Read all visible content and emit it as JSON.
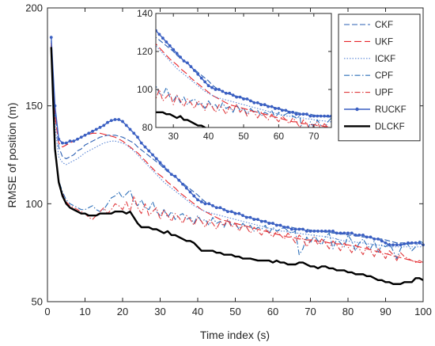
{
  "chart_data": {
    "type": "line",
    "title": "",
    "xlabel": "Time index (s)",
    "ylabel": "RMSE of position (m)",
    "xlim": [
      0,
      100
    ],
    "ylim": [
      50,
      200
    ],
    "xticks": [
      0,
      10,
      20,
      30,
      40,
      50,
      60,
      70,
      80,
      90,
      100
    ],
    "yticks": [
      50,
      100,
      150,
      200
    ],
    "grid": false,
    "legend_position": "top-right",
    "x": [
      1,
      2,
      3,
      4,
      5,
      6,
      7,
      8,
      9,
      10,
      11,
      12,
      13,
      14,
      15,
      16,
      17,
      18,
      19,
      20,
      21,
      22,
      23,
      24,
      25,
      26,
      27,
      28,
      29,
      30,
      31,
      32,
      33,
      34,
      35,
      36,
      37,
      38,
      39,
      40,
      41,
      42,
      43,
      44,
      45,
      46,
      47,
      48,
      49,
      50,
      51,
      52,
      53,
      54,
      55,
      56,
      57,
      58,
      59,
      60,
      61,
      62,
      63,
      64,
      65,
      66,
      67,
      68,
      69,
      70,
      71,
      72,
      73,
      74,
      75,
      76,
      77,
      78,
      79,
      80,
      81,
      82,
      83,
      84,
      85,
      86,
      87,
      88,
      89,
      90,
      91,
      92,
      93,
      94,
      95,
      96,
      97,
      98,
      99,
      100
    ],
    "series": [
      {
        "name": "CKF",
        "color": "#2b5fb3",
        "dash": "dashed",
        "marker": "none",
        "width": 1.1,
        "values": [
          183,
          147,
          129,
          124,
          123,
          124,
          125,
          127,
          128,
          130,
          131,
          132,
          133,
          134,
          134.5,
          135,
          135,
          135,
          134.5,
          134,
          133,
          132,
          131,
          129,
          127.5,
          126,
          124.5,
          123,
          121.5,
          120,
          118,
          116.5,
          115,
          113.5,
          112,
          110.5,
          109,
          107.5,
          106,
          104.5,
          102.5,
          101,
          100,
          99,
          98,
          97.5,
          97,
          96.5,
          96,
          95.5,
          95,
          94,
          93.5,
          93,
          92.5,
          92,
          91.5,
          91,
          90.5,
          90,
          89.5,
          89,
          88.5,
          88,
          88,
          87.5,
          87.5,
          87,
          87,
          86.5,
          86.5,
          86,
          86,
          85.5,
          85.5,
          85,
          85,
          84.5,
          84.5,
          84,
          84,
          83.5,
          83.5,
          83,
          83,
          82.5,
          82.5,
          82,
          82,
          81.5,
          81,
          80.5,
          80,
          80,
          80,
          79.5,
          79.5,
          80,
          80,
          79.5
        ]
      },
      {
        "name": "UKF",
        "color": "#e8262b",
        "dash": "longdash",
        "marker": "none",
        "width": 1.1,
        "values": [
          181,
          145,
          131,
          129,
          130,
          131,
          132,
          133,
          134,
          135,
          135.5,
          136,
          136,
          136,
          135.5,
          135,
          134.5,
          134,
          133,
          132,
          130.5,
          129,
          127.5,
          126,
          124,
          122,
          120,
          118,
          116,
          114.5,
          113,
          111,
          109.5,
          108,
          106,
          104.5,
          103,
          101.5,
          100,
          98.5,
          97,
          96,
          95,
          94,
          93,
          92,
          91.5,
          91,
          90.5,
          90,
          89.5,
          89,
          88.5,
          88,
          87.5,
          87,
          86.5,
          86,
          85.5,
          85,
          84.5,
          84,
          83.5,
          83,
          83,
          82.5,
          82,
          82,
          81.5,
          81.5,
          81,
          81,
          80.5,
          80.5,
          80,
          80,
          79.5,
          79.5,
          79,
          79,
          78.5,
          78.5,
          78,
          77.5,
          77,
          76.5,
          76,
          75.5,
          75,
          74.5,
          74,
          73.5,
          73,
          72.5,
          72,
          71.5,
          71,
          70.5,
          70,
          70
        ]
      },
      {
        "name": "ICKF",
        "color": "#5a86d6",
        "dash": "dotted",
        "marker": "none",
        "width": 1.1,
        "values": [
          182,
          140,
          124,
          121,
          120,
          121,
          122,
          123,
          124.5,
          126,
          127,
          128,
          129,
          130,
          131,
          131.5,
          132,
          132,
          131.5,
          131,
          130,
          128.5,
          127,
          125,
          123,
          121,
          119,
          117,
          115,
          113,
          111,
          109.5,
          108,
          106.5,
          105,
          103.5,
          102,
          100.5,
          99,
          98,
          97,
          96,
          95.5,
          95,
          94.5,
          94,
          93.5,
          93,
          92.5,
          92,
          91.5,
          91,
          90.5,
          90,
          89.5,
          89,
          88.5,
          88,
          87.5,
          87,
          86.5,
          86,
          86,
          85.5,
          85.5,
          85,
          85,
          84.5,
          84.5,
          84,
          84,
          83.5,
          83.5,
          83,
          83,
          82.5,
          82,
          81.5,
          81,
          81,
          80.5,
          80.5,
          80,
          80,
          79.5,
          79.5,
          79,
          79,
          78.5,
          78.5,
          78,
          78,
          78,
          78,
          78,
          78,
          78,
          78,
          78,
          78
        ]
      },
      {
        "name": "CPF",
        "color": "#2a6db8",
        "dash": "dashdot",
        "marker": "none",
        "width": 1.1,
        "values": [
          181,
          128,
          112,
          106,
          102,
          100,
          99,
          98,
          97,
          97,
          98,
          99,
          97,
          96,
          97,
          100,
          103,
          104,
          106,
          103,
          105,
          107,
          101,
          99,
          102,
          98,
          97,
          101,
          96,
          94,
          97,
          93,
          96,
          92,
          94,
          95,
          92,
          93,
          90,
          94,
          91,
          92,
          89,
          93,
          90,
          91,
          88,
          92,
          89,
          90,
          87,
          90,
          88,
          89,
          86,
          88,
          87,
          89,
          85,
          88,
          86,
          87,
          88,
          86,
          85,
          86,
          74,
          77,
          83,
          80,
          84,
          81,
          79,
          83,
          85,
          77,
          82,
          80,
          78,
          84,
          81,
          76,
          80,
          82,
          79,
          77,
          81,
          75,
          79,
          78,
          80,
          76,
          72,
          77,
          80,
          79,
          76,
          78,
          81,
          80
        ]
      },
      {
        "name": "UPF",
        "color": "#e03a3e",
        "dash": "dashdot",
        "marker": "none",
        "width": 1.1,
        "values": [
          182,
          127,
          111,
          105,
          101,
          99,
          98,
          97,
          96,
          95,
          93,
          92,
          94,
          96,
          98,
          95,
          97,
          100,
          99,
          97,
          101,
          96,
          104,
          98,
          95,
          100,
          94,
          96,
          98,
          92,
          97,
          94,
          91,
          95,
          93,
          90,
          94,
          92,
          89,
          93,
          91,
          88,
          92,
          90,
          87,
          91,
          89,
          92,
          88,
          90,
          86,
          89,
          88,
          85,
          88,
          86,
          84,
          87,
          85,
          83,
          86,
          84,
          82,
          85,
          83,
          80,
          84,
          82,
          78,
          81,
          83,
          79,
          82,
          80,
          77,
          81,
          79,
          76,
          80,
          78,
          75,
          79,
          77,
          74,
          78,
          76,
          73,
          77,
          75,
          72,
          76,
          74,
          71,
          75,
          73,
          72,
          71,
          70,
          71,
          70
        ]
      },
      {
        "name": "RUCKF",
        "color": "#3a5fc2",
        "dash": "solid",
        "marker": "dot",
        "width": 1.4,
        "values": [
          185,
          150,
          133,
          131,
          131,
          132,
          132,
          133,
          134,
          135,
          136,
          137,
          138,
          139,
          140,
          141.5,
          142.5,
          143,
          143,
          142,
          140,
          138,
          136,
          134,
          131,
          129,
          127,
          125,
          123,
          121,
          119,
          117,
          115,
          114,
          112,
          110,
          108,
          106,
          104,
          102,
          101,
          100,
          100,
          99,
          98,
          98,
          97,
          96,
          96,
          95,
          95,
          94,
          93,
          93,
          92,
          92,
          91,
          91,
          90,
          90,
          89,
          89,
          88,
          88,
          87,
          87,
          87,
          87,
          86,
          86,
          86,
          86,
          86,
          86,
          86,
          86,
          85,
          85,
          85,
          85,
          85,
          84,
          84,
          84,
          83,
          83,
          82,
          82,
          81,
          80,
          79,
          79,
          79,
          79,
          79.5,
          80,
          80,
          80,
          80,
          79
        ]
      },
      {
        "name": "DLCKF",
        "color": "#000000",
        "dash": "solid",
        "marker": "none",
        "width": 2.4,
        "values": [
          180,
          128,
          111,
          104,
          100,
          98,
          97,
          96,
          95,
          95,
          94,
          94,
          94,
          95,
          95,
          95,
          95,
          96,
          96,
          96,
          95,
          96,
          93,
          90,
          88,
          88,
          88,
          87,
          87,
          86,
          85,
          86,
          84,
          84,
          83,
          82,
          81,
          81,
          80,
          78,
          76,
          76,
          76,
          76,
          75,
          75,
          74,
          74,
          74,
          73,
          73,
          72,
          72,
          72,
          71.5,
          71,
          71,
          71,
          71,
          70,
          71,
          70,
          70,
          69,
          69,
          69,
          70,
          70,
          69,
          68,
          68,
          67,
          68,
          68,
          67,
          67,
          66,
          66,
          66,
          65,
          65,
          64,
          64,
          64,
          63,
          63,
          62,
          61,
          61,
          60,
          60,
          59,
          59,
          59,
          60,
          60,
          60,
          62,
          62,
          61
        ]
      }
    ],
    "inset": {
      "xlim": [
        25,
        75
      ],
      "ylim": [
        80,
        140
      ],
      "xticks": [
        30,
        40,
        50,
        60,
        70
      ],
      "yticks": [
        80,
        100,
        120,
        140
      ]
    }
  }
}
